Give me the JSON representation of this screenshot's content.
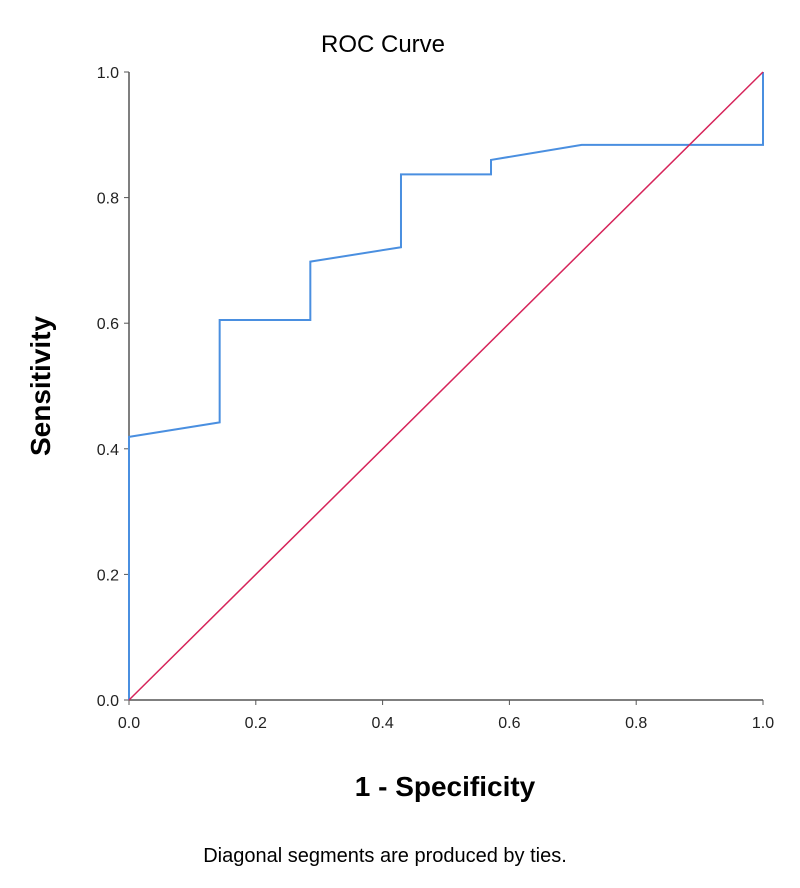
{
  "chart_data": {
    "type": "line",
    "title": "ROC Curve",
    "xlabel": "1 - Specificity",
    "ylabel": "Sensitivity",
    "xlim": [
      0,
      1
    ],
    "ylim": [
      0,
      1
    ],
    "xticks": [
      "0.0",
      "0.2",
      "0.4",
      "0.6",
      "0.8",
      "1.0"
    ],
    "yticks": [
      "0.0",
      "0.2",
      "0.4",
      "0.6",
      "0.8",
      "1.0"
    ],
    "grid": false,
    "footnote": "Diagonal segments are produced by ties.",
    "series": [
      {
        "role": "roc-curve",
        "color": "#4a8fe0",
        "x": [
          0,
          0,
          0.143,
          0.143,
          0.286,
          0.286,
          0.429,
          0.429,
          0.571,
          0.571,
          0.714,
          1,
          1
        ],
        "y": [
          0,
          0.419,
          0.442,
          0.605,
          0.605,
          0.698,
          0.721,
          0.837,
          0.837,
          0.86,
          0.884,
          0.884,
          1
        ]
      },
      {
        "role": "reference-line",
        "color": "#d6245a",
        "x": [
          0,
          1
        ],
        "y": [
          0,
          1
        ]
      }
    ]
  }
}
